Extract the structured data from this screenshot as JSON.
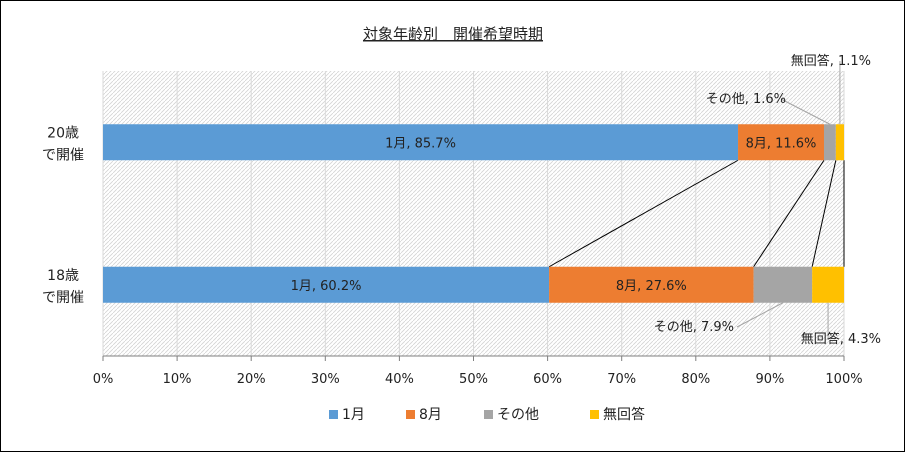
{
  "chart_data": {
    "type": "bar",
    "orientation": "horizontal",
    "stacked": "percent",
    "title": "対象年齢別　開催希望時期",
    "categories": [
      {
        "line1": "20歳",
        "line2": "で開催"
      },
      {
        "line1": "18歳",
        "line2": "で開催"
      }
    ],
    "x_ticks": [
      "0%",
      "10%",
      "20%",
      "30%",
      "40%",
      "50%",
      "60%",
      "70%",
      "80%",
      "90%",
      "100%"
    ],
    "xlim": [
      0,
      100
    ],
    "grid": true,
    "legend_position": "bottom",
    "series": [
      {
        "name": "1月",
        "color": "#5b9bd5",
        "values": [
          85.7,
          60.2
        ],
        "labels": [
          "1月, 85.7%",
          "1月, 60.2%"
        ]
      },
      {
        "name": "8月",
        "color": "#ed7d31",
        "values": [
          11.6,
          27.6
        ],
        "labels": [
          "8月, 11.6%",
          "8月, 27.6%"
        ]
      },
      {
        "name": "その他",
        "color": "#a5a5a5",
        "values": [
          1.6,
          7.9
        ],
        "labels": [
          "その他, 1.6%",
          "その他, 7.9%"
        ]
      },
      {
        "name": "無回答",
        "color": "#ffc000",
        "values": [
          1.1,
          4.3
        ],
        "labels": [
          "無回答, 1.1%",
          "無回答, 4.3%"
        ]
      }
    ]
  }
}
